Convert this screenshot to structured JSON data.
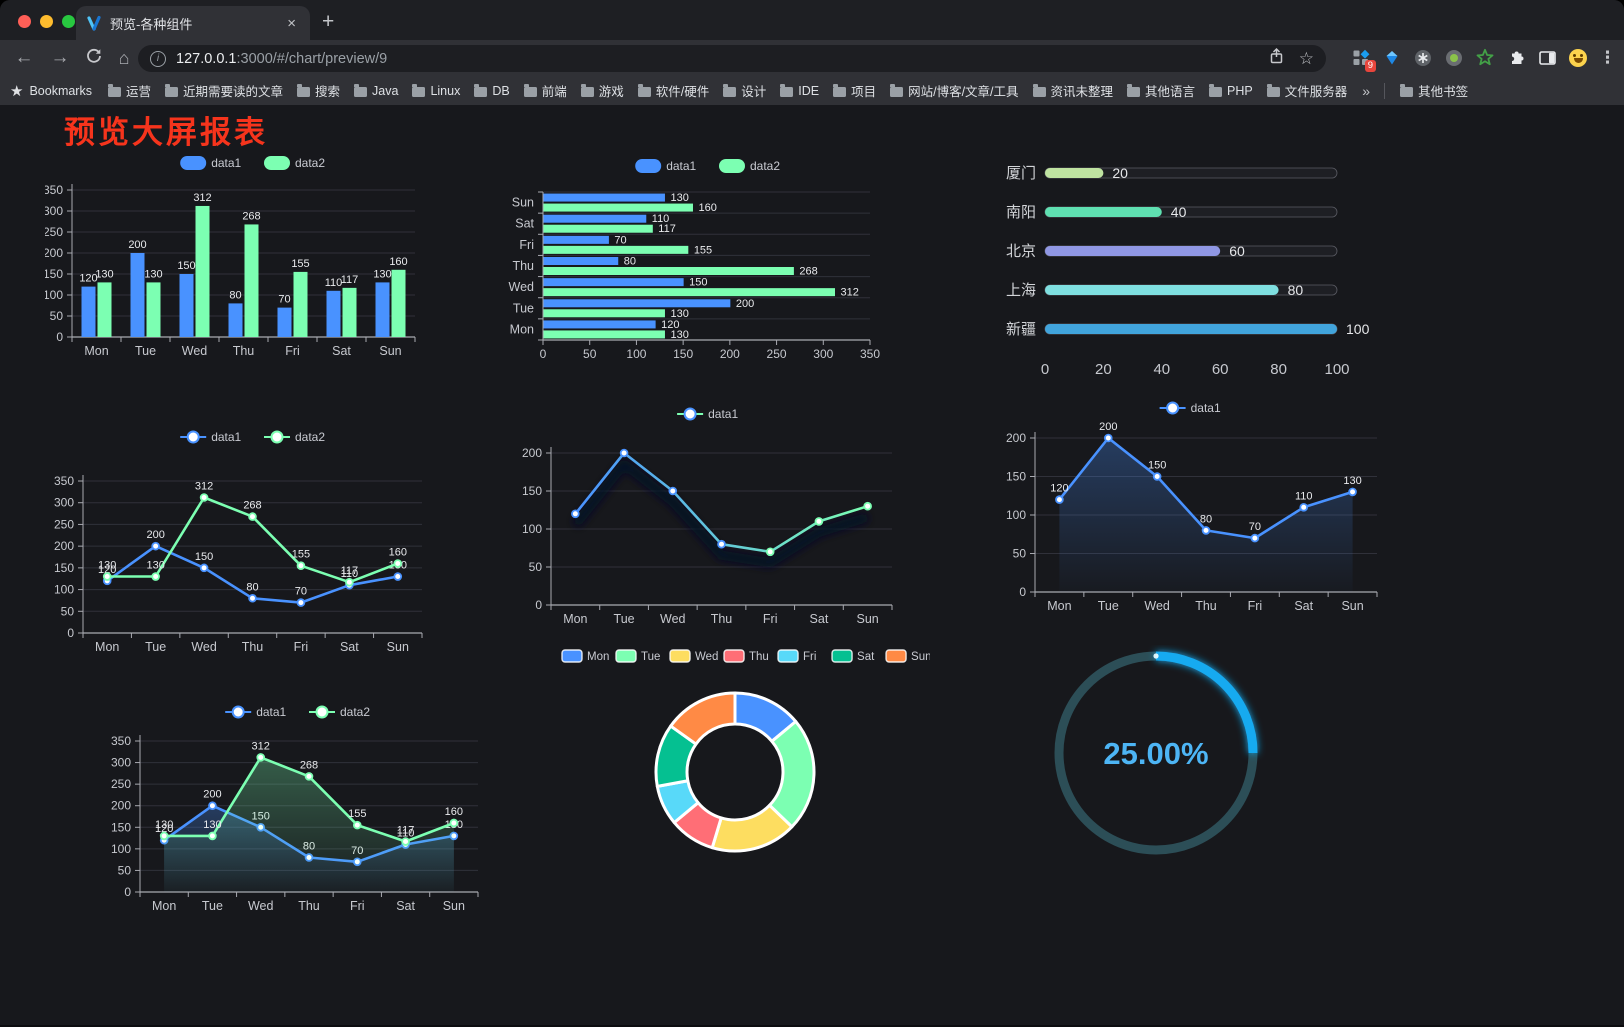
{
  "tab": {
    "title": "预览-各种组件"
  },
  "icons": {
    "back": "←",
    "forward": "→",
    "home": "⌂",
    "star": "☆",
    "menu": "⋮",
    "plus": "+",
    "close": "×",
    "bookmarks_star": "★",
    "overflow": "»",
    "info": "i"
  },
  "toolbar": {
    "url_host": "127.0.0.1",
    "url_path": ":3000/#/chart/preview/9",
    "extensions_badge": "9"
  },
  "bookmarks": {
    "label": "Bookmarks",
    "items": [
      "运营",
      "近期需要读的文章",
      "搜索",
      "Java",
      "Linux",
      "DB",
      "前端",
      "游戏",
      "软件/硬件",
      "设计",
      "IDE",
      "项目",
      "网站/博客/文章/工具",
      "资讯未整理",
      "其他语言",
      "PHP",
      "文件服务器"
    ],
    "overflow": "»",
    "other_label": "其他书签"
  },
  "page": {
    "title": "预览大屏报表",
    "title_color": "#f6341c",
    "background": "#17181c"
  },
  "chart_data": [
    {
      "type": "bar",
      "title": "",
      "legend": [
        "data1",
        "data2"
      ],
      "legend_position": "top",
      "categories": [
        "Mon",
        "Tue",
        "Wed",
        "Thu",
        "Fri",
        "Sat",
        "Sun"
      ],
      "series": [
        {
          "name": "data1",
          "color": "#4992ff",
          "values": [
            120,
            200,
            150,
            80,
            70,
            110,
            130
          ]
        },
        {
          "name": "data2",
          "color": "#7cffb2",
          "values": [
            130,
            130,
            312,
            268,
            155,
            117,
            160
          ]
        }
      ],
      "ylim": [
        0,
        350
      ],
      "ytick": 50,
      "labels": true,
      "grid": true
    },
    {
      "type": "hbar",
      "title": "",
      "legend": [
        "data1",
        "data2"
      ],
      "legend_position": "top",
      "categories": [
        "Mon",
        "Tue",
        "Wed",
        "Thu",
        "Fri",
        "Sat",
        "Sun"
      ],
      "series": [
        {
          "name": "data1",
          "color": "#4992ff",
          "values": [
            120,
            200,
            150,
            80,
            70,
            110,
            130
          ]
        },
        {
          "name": "data2",
          "color": "#7cffb2",
          "values": [
            130,
            130,
            312,
            268,
            155,
            117,
            160
          ]
        }
      ],
      "xlim": [
        0,
        350
      ],
      "xtick": 50,
      "labels": true,
      "grid": true
    },
    {
      "type": "progress",
      "categories": [
        "厦门",
        "南阳",
        "北京",
        "上海",
        "新疆"
      ],
      "values": [
        20,
        40,
        60,
        80,
        100
      ],
      "colors": [
        "#bfe3a1",
        "#5fe0b1",
        "#9097e4",
        "#7fdfe0",
        "#41a4dc"
      ],
      "xlim": [
        0,
        100
      ],
      "xticks": [
        0,
        20,
        40,
        60,
        80,
        100
      ],
      "labels": true
    },
    {
      "type": "line",
      "legend": [
        "data1",
        "data2"
      ],
      "legend_position": "top",
      "categories": [
        "Mon",
        "Tue",
        "Wed",
        "Thu",
        "Fri",
        "Sat",
        "Sun"
      ],
      "series": [
        {
          "name": "data1",
          "color": "#4992ff",
          "values": [
            120,
            200,
            150,
            80,
            70,
            110,
            130
          ]
        },
        {
          "name": "data2",
          "color": "#7cffb2",
          "values": [
            130,
            130,
            312,
            268,
            155,
            117,
            160
          ]
        }
      ],
      "ylim": [
        0,
        350
      ],
      "ytick": 50,
      "labels": true,
      "grid": true
    },
    {
      "type": "line",
      "legend": [
        "data1"
      ],
      "legend_position": "top",
      "categories": [
        "Mon",
        "Tue",
        "Wed",
        "Thu",
        "Fri",
        "Sat",
        "Sun"
      ],
      "series": [
        {
          "name": "data1",
          "gradient": [
            "#4992ff",
            "#7cffb2"
          ],
          "shadow": true,
          "values": [
            120,
            200,
            150,
            80,
            70,
            110,
            130
          ]
        }
      ],
      "ylim": [
        0,
        200
      ],
      "ytick": 50,
      "labels": false,
      "grid": true
    },
    {
      "type": "line",
      "legend": [
        "data1"
      ],
      "legend_position": "top",
      "categories": [
        "Mon",
        "Tue",
        "Wed",
        "Thu",
        "Fri",
        "Sat",
        "Sun"
      ],
      "series": [
        {
          "name": "data1",
          "color": "#4992ff",
          "area": true,
          "values": [
            120,
            200,
            150,
            80,
            70,
            110,
            130
          ]
        }
      ],
      "ylim": [
        0,
        200
      ],
      "ytick": 50,
      "labels": true,
      "grid": true
    },
    {
      "type": "line",
      "legend": [
        "data1",
        "data2"
      ],
      "legend_position": "top",
      "categories": [
        "Mon",
        "Tue",
        "Wed",
        "Thu",
        "Fri",
        "Sat",
        "Sun"
      ],
      "series": [
        {
          "name": "data1",
          "color": "#4992ff",
          "area": true,
          "values": [
            120,
            200,
            150,
            80,
            70,
            110,
            130
          ]
        },
        {
          "name": "data2",
          "color": "#7cffb2",
          "area": true,
          "values": [
            130,
            130,
            312,
            268,
            155,
            117,
            160
          ]
        }
      ],
      "ylim": [
        0,
        350
      ],
      "ytick": 50,
      "labels": true,
      "grid": true
    },
    {
      "type": "pie",
      "legend_position": "top",
      "categories": [
        "Mon",
        "Tue",
        "Wed",
        "Thu",
        "Fri",
        "Sat",
        "Sun"
      ],
      "values": [
        120,
        200,
        150,
        80,
        70,
        110,
        130
      ],
      "colors": [
        "#4992ff",
        "#7cffb2",
        "#fddd60",
        "#ff6e76",
        "#58d9f9",
        "#05c091",
        "#ff8a45"
      ],
      "border_color": "#ffffff"
    },
    {
      "type": "gauge",
      "value_text": "25.00%",
      "percent": 25,
      "color": "#18aaf0",
      "track_color": "#2c4e57",
      "text_color": "#4db5f5"
    }
  ]
}
